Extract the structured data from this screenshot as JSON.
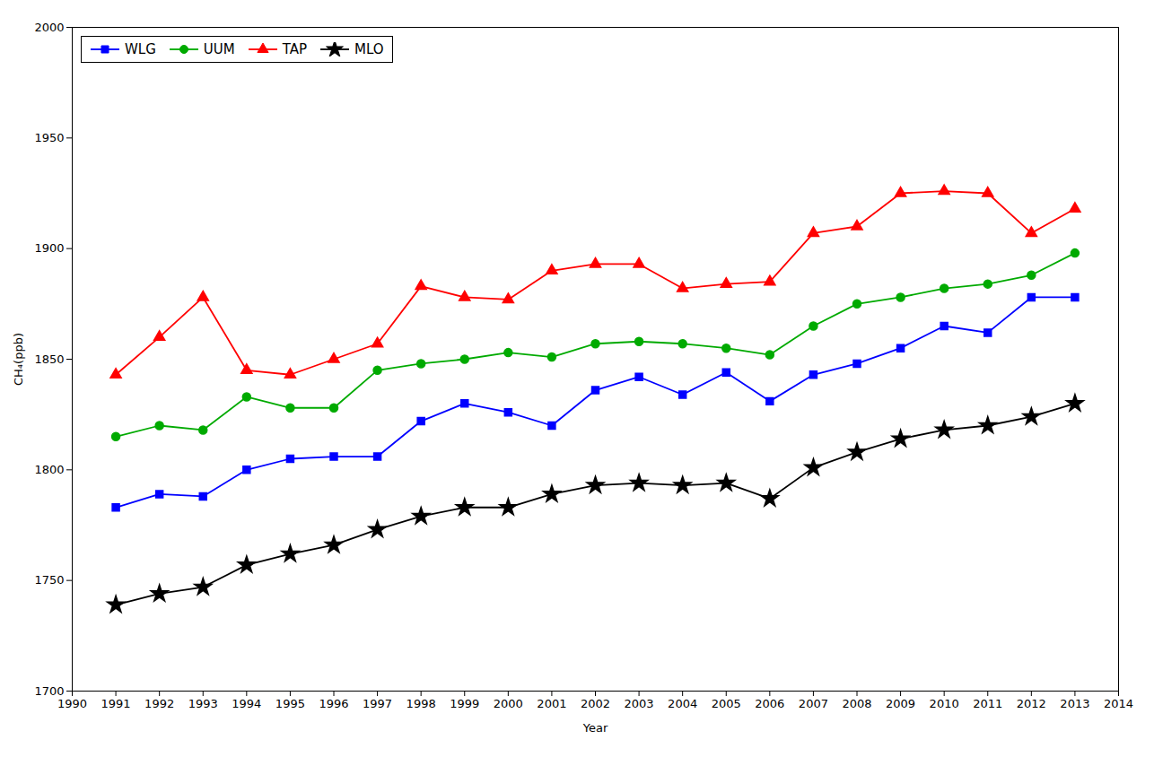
{
  "chart_data": {
    "type": "line",
    "x": [
      1991,
      1992,
      1993,
      1994,
      1995,
      1996,
      1997,
      1998,
      1999,
      2000,
      2001,
      2002,
      2003,
      2004,
      2005,
      2006,
      2007,
      2008,
      2009,
      2010,
      2011,
      2012,
      2013
    ],
    "series": [
      {
        "name": "WLG",
        "color": "#0000FF",
        "marker": "square",
        "values": [
          1783,
          1789,
          1788,
          1800,
          1805,
          1806,
          1806,
          1822,
          1830,
          1826,
          1820,
          1836,
          1842,
          1834,
          1844,
          1831,
          1843,
          1848,
          1855,
          1865,
          1862,
          1878,
          1878
        ]
      },
      {
        "name": "UUM",
        "color": "#00AA00",
        "marker": "circle",
        "values": [
          1815,
          1820,
          1818,
          1833,
          1828,
          1828,
          1845,
          1848,
          1850,
          1853,
          1851,
          1857,
          1858,
          1857,
          1855,
          1852,
          1865,
          1875,
          1878,
          1882,
          1884,
          1888,
          1898
        ]
      },
      {
        "name": "TAP",
        "color": "#FF0000",
        "marker": "triangle",
        "values": [
          1843,
          1860,
          1878,
          1845,
          1843,
          1850,
          1857,
          1883,
          1878,
          1877,
          1890,
          1893,
          1893,
          1882,
          1884,
          1885,
          1907,
          1910,
          1925,
          1926,
          1925,
          1907,
          1918
        ]
      },
      {
        "name": "MLO",
        "color": "#000000",
        "marker": "star",
        "values": [
          1739,
          1744,
          1747,
          1757,
          1762,
          1766,
          1773,
          1779,
          1783,
          1783,
          1789,
          1793,
          1794,
          1793,
          1794,
          1787,
          1801,
          1808,
          1814,
          1818,
          1820,
          1824,
          1830
        ]
      }
    ],
    "xlabel": "Year",
    "ylabel": "CH₄(ppb)",
    "xlim": [
      1990,
      2014
    ],
    "ylim": [
      1700,
      2000
    ],
    "xticks": [
      1990,
      1991,
      1992,
      1993,
      1994,
      1995,
      1996,
      1997,
      1998,
      1999,
      2000,
      2001,
      2002,
      2003,
      2004,
      2005,
      2006,
      2007,
      2008,
      2009,
      2010,
      2011,
      2012,
      2013,
      2014
    ],
    "yticks": [
      1700,
      1750,
      1800,
      1850,
      1900,
      1950,
      2000
    ],
    "grid": false,
    "legend": "upper left"
  }
}
